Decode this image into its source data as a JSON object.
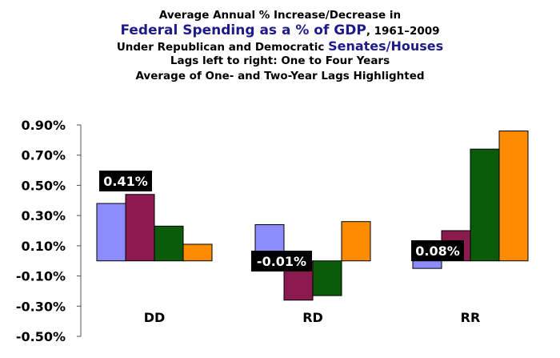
{
  "title": {
    "line1": "Average Annual % Increase/Decrease in",
    "line2_highlight": "Federal Spending as a % of GDP",
    "line2_rest": ", 1961–2009",
    "line3_plain": "Under Republican and Democratic ",
    "line3_highlight": "Senates/Houses",
    "line4": "Lags left to right: One to Four Years",
    "line5": "Average of One- and Two-Year Lags Highlighted"
  },
  "chart_data": {
    "type": "bar",
    "categories": [
      "DD",
      "RD",
      "RR"
    ],
    "series": [
      {
        "values": [
          0.38,
          0.24,
          -0.05
        ],
        "color": "#8c8cff"
      },
      {
        "values": [
          0.44,
          -0.26,
          0.2
        ],
        "color": "#8b1a4f"
      },
      {
        "values": [
          0.23,
          -0.23,
          0.74
        ],
        "color": "#0a5c0a"
      },
      {
        "values": [
          0.11,
          0.26,
          0.86
        ],
        "color": "#ff8c00"
      }
    ],
    "highlight_labels": [
      "0.41%",
      "-0.01%",
      "0.08%"
    ],
    "ylim": [
      -0.5,
      0.9
    ],
    "yticks": [
      "0.90%",
      "0.70%",
      "0.50%",
      "0.30%",
      "0.10%",
      "-0.10%",
      "-0.30%",
      "-0.50%"
    ],
    "ytick_values": [
      0.9,
      0.7,
      0.5,
      0.3,
      0.1,
      -0.1,
      -0.3,
      -0.5
    ],
    "grid": false,
    "legend": "none"
  }
}
